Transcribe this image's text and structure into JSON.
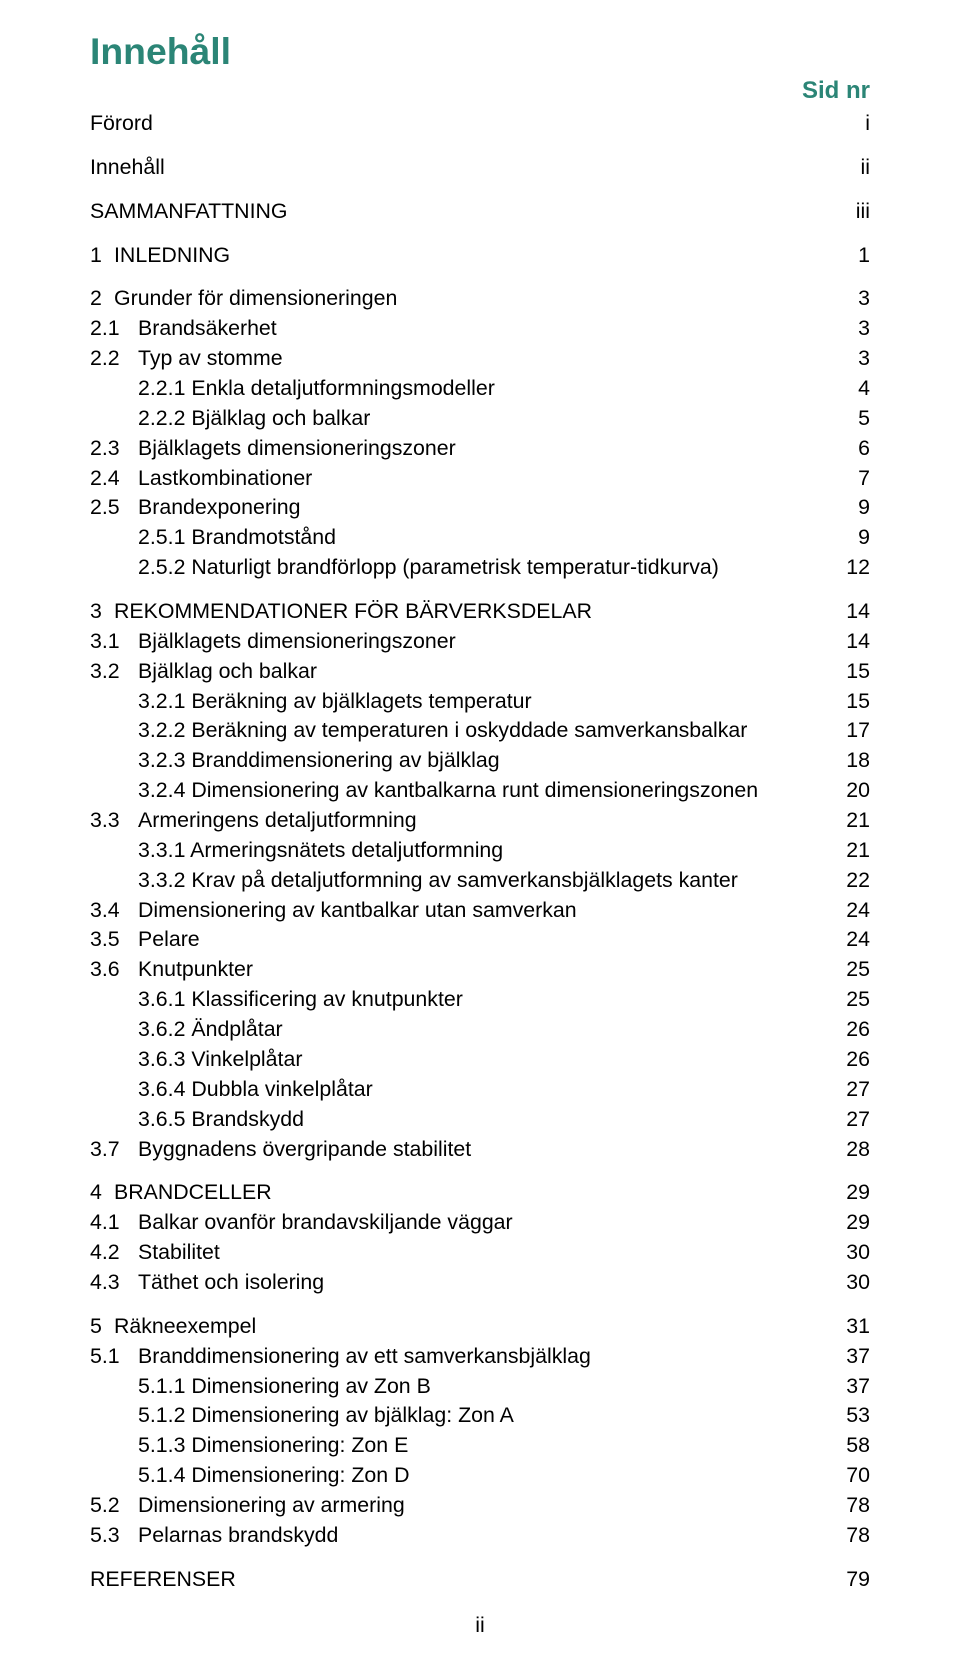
{
  "colors": {
    "teal": "#2b8576",
    "text": "#000000",
    "background": "#ffffff"
  },
  "fonts": {
    "title_size_pt": 28,
    "title_weight": "bold",
    "sidnr_size_pt": 18,
    "sidnr_weight": "bold",
    "body_size_pt": 16,
    "family": "Arial"
  },
  "title": "Innehåll",
  "sidnr": "Sid nr",
  "footer": "ii",
  "toc": [
    {
      "level": 0,
      "label": "Förord",
      "page": "i"
    },
    {
      "level": 0,
      "label": "Innehåll",
      "page": "ii"
    },
    {
      "level": 0,
      "label": "SAMMANFATTNING",
      "page": "iii"
    },
    {
      "level": 1,
      "num": "1",
      "label": "INLEDNING",
      "page": "1"
    },
    {
      "level": 1,
      "num": "2",
      "label": "Grunder för dimensioneringen",
      "page": "3"
    },
    {
      "level": 2,
      "num": "2.1",
      "label": "Brandsäkerhet",
      "page": "3"
    },
    {
      "level": 2,
      "num": "2.2",
      "label": "Typ av stomme",
      "page": "3"
    },
    {
      "level": 3,
      "label": "2.2.1 Enkla detaljutformningsmodeller",
      "page": "4"
    },
    {
      "level": 3,
      "label": "2.2.2 Bjälklag och balkar",
      "page": "5"
    },
    {
      "level": 2,
      "num": "2.3",
      "label": "Bjälklagets dimensioneringszoner",
      "page": "6"
    },
    {
      "level": 2,
      "num": "2.4",
      "label": "Lastkombinationer",
      "page": "7"
    },
    {
      "level": 2,
      "num": "2.5",
      "label": "Brandexponering",
      "page": "9"
    },
    {
      "level": 3,
      "label": "2.5.1 Brandmotstånd",
      "page": "9"
    },
    {
      "level": 3,
      "label": "2.5.2 Naturligt brandförlopp (parametrisk temperatur-tidkurva)",
      "page": "12"
    },
    {
      "level": 1,
      "num": "3",
      "label": "REKOMMENDATIONER FÖR BÄRVERKSDELAR",
      "page": "14"
    },
    {
      "level": 2,
      "num": "3.1",
      "label": "Bjälklagets dimensioneringszoner",
      "page": "14"
    },
    {
      "level": 2,
      "num": "3.2",
      "label": "Bjälklag och balkar",
      "page": "15"
    },
    {
      "level": 3,
      "label": "3.2.1 Beräkning av bjälklagets temperatur",
      "page": "15"
    },
    {
      "level": 3,
      "label": "3.2.2 Beräkning av temperaturen i oskyddade samverkansbalkar",
      "page": "17"
    },
    {
      "level": 3,
      "label": "3.2.3 Branddimensionering av bjälklag",
      "page": "18"
    },
    {
      "level": 3,
      "label": "3.2.4 Dimensionering av kantbalkarna runt dimensioneringszonen",
      "page": "20"
    },
    {
      "level": 2,
      "num": "3.3",
      "label": "Armeringens detaljutformning",
      "page": "21"
    },
    {
      "level": 3,
      "label": "3.3.1 Armeringsnätets detaljutformning",
      "page": "21"
    },
    {
      "level": 3,
      "label": "3.3.2 Krav på detaljutformning av samverkansbjälklagets kanter",
      "page": "22"
    },
    {
      "level": 2,
      "num": "3.4",
      "label": "Dimensionering av kantbalkar utan samverkan",
      "page": "24"
    },
    {
      "level": 2,
      "num": "3.5",
      "label": "Pelare",
      "page": "24"
    },
    {
      "level": 2,
      "num": "3.6",
      "label": "Knutpunkter",
      "page": "25"
    },
    {
      "level": 3,
      "label": "3.6.1 Klassificering av knutpunkter",
      "page": "25"
    },
    {
      "level": 3,
      "label": "3.6.2 Ändplåtar",
      "page": "26"
    },
    {
      "level": 3,
      "label": "3.6.3 Vinkelplåtar",
      "page": "26"
    },
    {
      "level": 3,
      "label": "3.6.4 Dubbla vinkelplåtar",
      "page": "27"
    },
    {
      "level": 3,
      "label": "3.6.5 Brandskydd",
      "page": "27"
    },
    {
      "level": 2,
      "num": "3.7",
      "label": "Byggnadens övergripande stabilitet",
      "page": "28"
    },
    {
      "level": 1,
      "num": "4",
      "label": "BRANDCELLER",
      "page": "29"
    },
    {
      "level": 2,
      "num": "4.1",
      "label": "Balkar ovanför brandavskiljande väggar",
      "page": "29"
    },
    {
      "level": 2,
      "num": "4.2",
      "label": "Stabilitet",
      "page": "30"
    },
    {
      "level": 2,
      "num": "4.3",
      "label": "Täthet och isolering",
      "page": "30"
    },
    {
      "level": 1,
      "num": "5",
      "label": "Räkneexempel",
      "page": "31"
    },
    {
      "level": 2,
      "num": "5.1",
      "label": "Branddimensionering av ett samverkansbjälklag",
      "page": "37"
    },
    {
      "level": 3,
      "label": "5.1.1 Dimensionering av Zon B",
      "page": "37"
    },
    {
      "level": 3,
      "label": "5.1.2 Dimensionering av bjälklag: Zon A",
      "page": "53"
    },
    {
      "level": 3,
      "label": "5.1.3 Dimensionering: Zon E",
      "page": "58"
    },
    {
      "level": 3,
      "label": "5.1.4 Dimensionering: Zon D",
      "page": "70"
    },
    {
      "level": 2,
      "num": "5.2",
      "label": "Dimensionering av armering",
      "page": "78"
    },
    {
      "level": 2,
      "num": "5.3",
      "label": "Pelarnas brandskydd",
      "page": "78"
    },
    {
      "level": 0,
      "label": "REFERENSER",
      "page": "79"
    }
  ]
}
